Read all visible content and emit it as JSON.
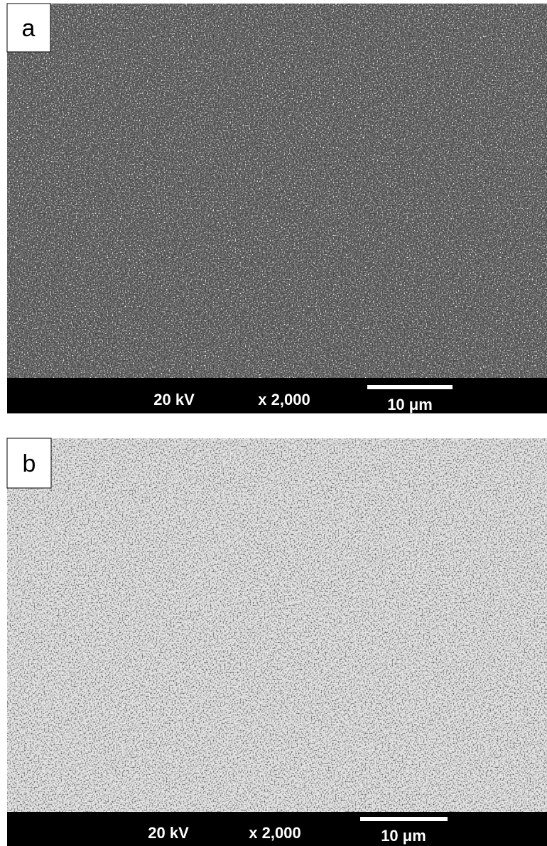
{
  "panels": [
    {
      "label": "a",
      "voltage": "20 kV",
      "magnification": "x 2,000",
      "scale": "10 μm"
    },
    {
      "label": "b",
      "voltage": "20 kV",
      "magnification": "x 2,000",
      "scale": "10 μm"
    }
  ]
}
